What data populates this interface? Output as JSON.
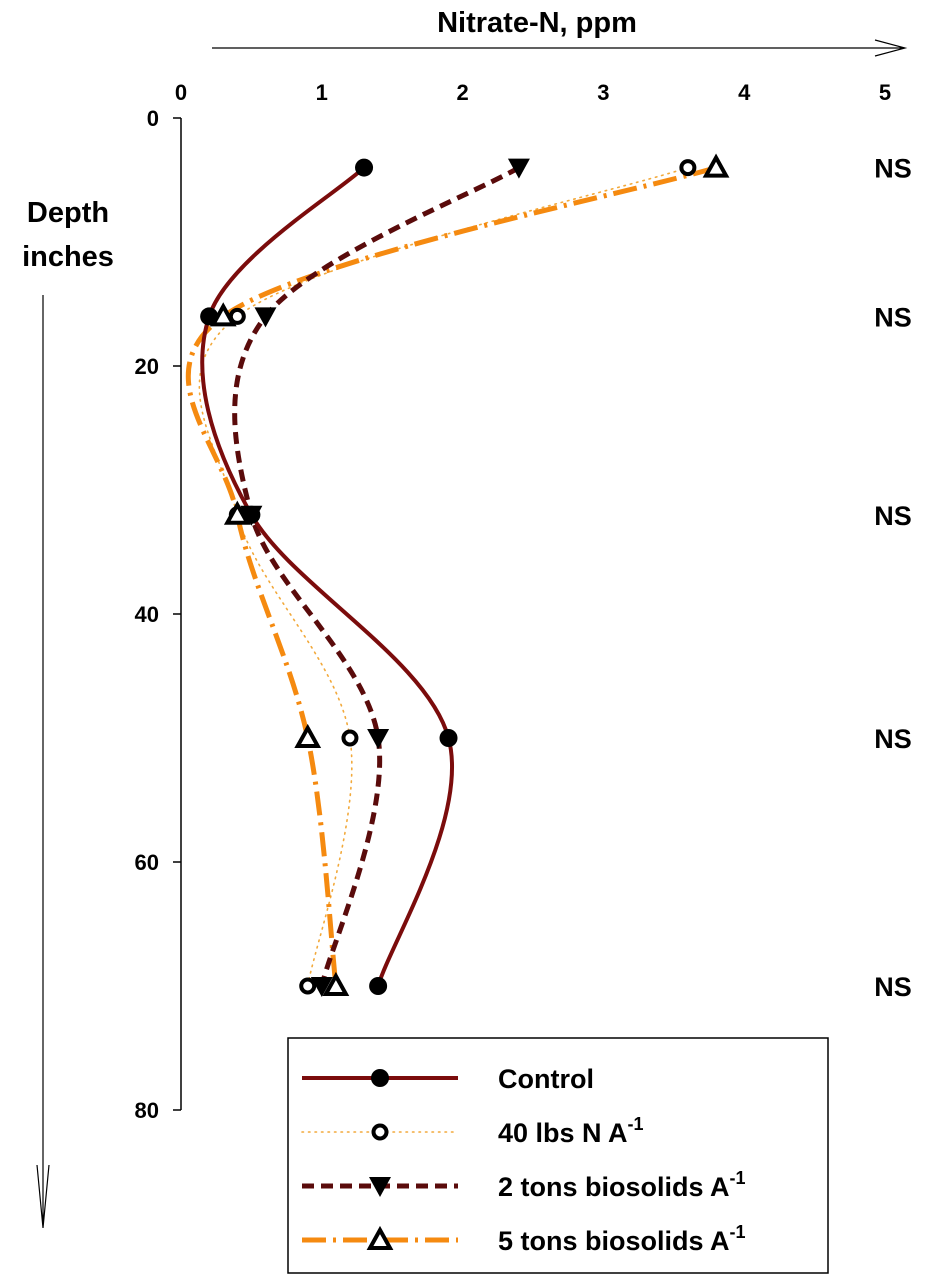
{
  "chart_data": {
    "type": "line",
    "xlabel": "Nitrate-N, ppm",
    "ylabel_line1": "Depth",
    "ylabel_line2": "inches",
    "xlim": [
      0,
      5
    ],
    "ylim": [
      0,
      80
    ],
    "y_inverted": true,
    "x_axis_position": "top",
    "x_ticks": [
      "0",
      "1",
      "2",
      "3",
      "4",
      "5"
    ],
    "y_ticks": [
      "0",
      "20",
      "40",
      "60",
      "80"
    ],
    "grid": false,
    "legend_position": "bottom-right",
    "series": [
      {
        "name": "Control",
        "name_superscript": "",
        "color": "#7b0c0c",
        "line_style": "solid",
        "marker": "filled-circle",
        "x": [
          1.3,
          0.2,
          0.5,
          1.9,
          1.4
        ],
        "y": [
          4,
          16,
          32,
          50,
          70
        ]
      },
      {
        "name": "40 lbs N A",
        "name_superscript": "-1",
        "color": "#f2a93b",
        "line_style": "dotted",
        "marker": "open-circle",
        "x": [
          3.6,
          0.4,
          0.4,
          1.2,
          0.9
        ],
        "y": [
          4,
          16,
          32,
          50,
          70
        ]
      },
      {
        "name": "2 tons biosolids A",
        "name_superscript": "-1",
        "color": "#5a0b0b",
        "line_style": "dashed",
        "marker": "down-triangle",
        "x": [
          2.4,
          0.6,
          0.5,
          1.4,
          1.0
        ],
        "y": [
          4,
          16,
          32,
          50,
          70
        ]
      },
      {
        "name": "5 tons biosolids A",
        "name_superscript": "-1",
        "color": "#f58a10",
        "line_style": "dash-dot",
        "marker": "open-triangle",
        "x": [
          3.8,
          0.3,
          0.4,
          0.9,
          1.1
        ],
        "y": [
          4,
          16,
          32,
          50,
          70
        ]
      }
    ],
    "annotations": [
      {
        "text": "NS",
        "depth": 4
      },
      {
        "text": "NS",
        "depth": 16
      },
      {
        "text": "NS",
        "depth": 32
      },
      {
        "text": "NS",
        "depth": 50
      },
      {
        "text": "NS",
        "depth": 70
      }
    ]
  }
}
